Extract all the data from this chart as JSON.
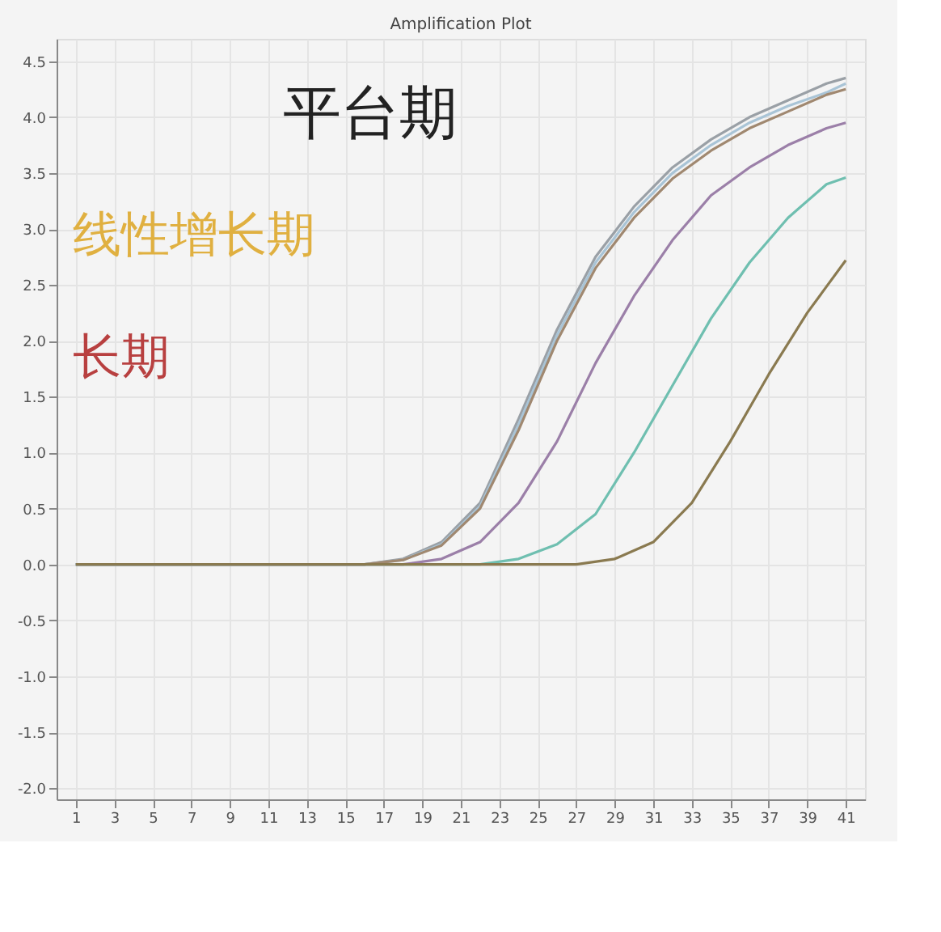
{
  "chart_data": {
    "type": "line",
    "title": "Amplification Plot",
    "annotations": [
      "平台期",
      "线性增长期",
      "长期"
    ],
    "xlim": [
      0,
      42
    ],
    "xticks": [
      1,
      3,
      5,
      7,
      9,
      11,
      13,
      15,
      17,
      19,
      21,
      23,
      25,
      27,
      29,
      31,
      33,
      35,
      37,
      39,
      41
    ],
    "ylim": [
      -2.1,
      4.7
    ],
    "yticks": [
      4.5,
      {
        "value": 4,
        "label": "4.0"
      },
      3.5,
      {
        "value": 3,
        "label": "3.0"
      },
      2.5,
      {
        "value": 2,
        "label": "2.0"
      },
      1.5,
      {
        "value": 1,
        "label": "1.0"
      },
      {
        "value": 0.5,
        "label": "0.5"
      },
      {
        "value": 0,
        "label": "0.0"
      },
      {
        "value": -0.5,
        "label": "-0.5"
      },
      {
        "value": -1.0,
        "label": "-1.0"
      },
      {
        "value": -1.5,
        "label": "-1.5"
      },
      {
        "value": -2.0,
        "label": "-2.0"
      }
    ],
    "grid": true,
    "marker": "none",
    "line_style": "solid",
    "series": [
      {
        "color": "#9aa0a6",
        "x": [
          1,
          16,
          18,
          20,
          22,
          24,
          26,
          28,
          30,
          32,
          34,
          36,
          38,
          40,
          41
        ],
        "values": [
          0,
          0,
          0.05,
          0.2,
          0.55,
          1.3,
          2.1,
          2.75,
          3.2,
          3.55,
          3.8,
          4.0,
          4.15,
          4.3,
          4.35
        ]
      },
      {
        "color": "#a9c4d6",
        "x": [
          1,
          16,
          18,
          20,
          22,
          24,
          26,
          28,
          30,
          32,
          34,
          36,
          38,
          40,
          41
        ],
        "values": [
          0,
          0,
          0.04,
          0.18,
          0.52,
          1.25,
          2.05,
          2.7,
          3.15,
          3.5,
          3.75,
          3.95,
          4.1,
          4.22,
          4.3
        ]
      },
      {
        "color": "#a08870",
        "x": [
          1,
          16,
          18,
          20,
          22,
          24,
          26,
          28,
          30,
          32,
          34,
          36,
          38,
          40,
          41
        ],
        "values": [
          0,
          0,
          0.04,
          0.17,
          0.5,
          1.2,
          2.0,
          2.65,
          3.1,
          3.45,
          3.7,
          3.9,
          4.05,
          4.2,
          4.25
        ]
      },
      {
        "color": "#9b7fa8",
        "x": [
          1,
          18,
          20,
          22,
          24,
          26,
          28,
          30,
          32,
          34,
          36,
          38,
          40,
          41
        ],
        "values": [
          0,
          0,
          0.05,
          0.2,
          0.55,
          1.1,
          1.8,
          2.4,
          2.9,
          3.3,
          3.55,
          3.75,
          3.9,
          3.95
        ]
      },
      {
        "color": "#6fbfb0",
        "x": [
          1,
          22,
          24,
          26,
          28,
          30,
          32,
          34,
          36,
          38,
          40,
          41
        ],
        "values": [
          0,
          0,
          0.05,
          0.18,
          0.45,
          1.0,
          1.6,
          2.2,
          2.7,
          3.1,
          3.4,
          3.46
        ]
      },
      {
        "color": "#8a7a50",
        "x": [
          1,
          27,
          29,
          31,
          33,
          35,
          37,
          39,
          41
        ],
        "values": [
          0,
          0,
          0.05,
          0.2,
          0.55,
          1.1,
          1.7,
          2.25,
          2.72
        ]
      }
    ]
  }
}
